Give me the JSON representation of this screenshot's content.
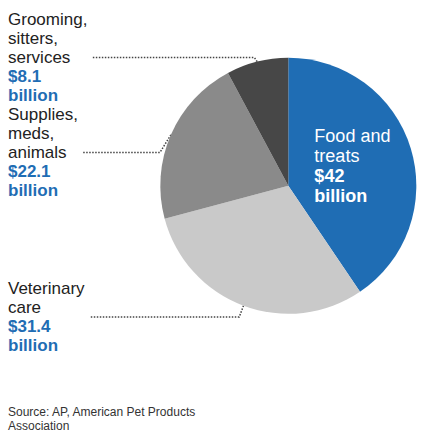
{
  "chart_data": {
    "type": "pie",
    "categories": [
      "Food and treats",
      "Veterinary care",
      "Supplies, meds, animals",
      "Grooming, sitters, services"
    ],
    "values": [
      42,
      31.4,
      22.1,
      8.1
    ],
    "value_labels": [
      "$42 billion",
      "$31.4 billion",
      "$22.1 billion",
      "$8.1 billion"
    ],
    "colors": [
      "#1f6db4",
      "#c9c9c9",
      "#8a8a8a",
      "#474747"
    ],
    "data_labels": true,
    "source": "Source: AP, American Pet Products Association"
  }
}
